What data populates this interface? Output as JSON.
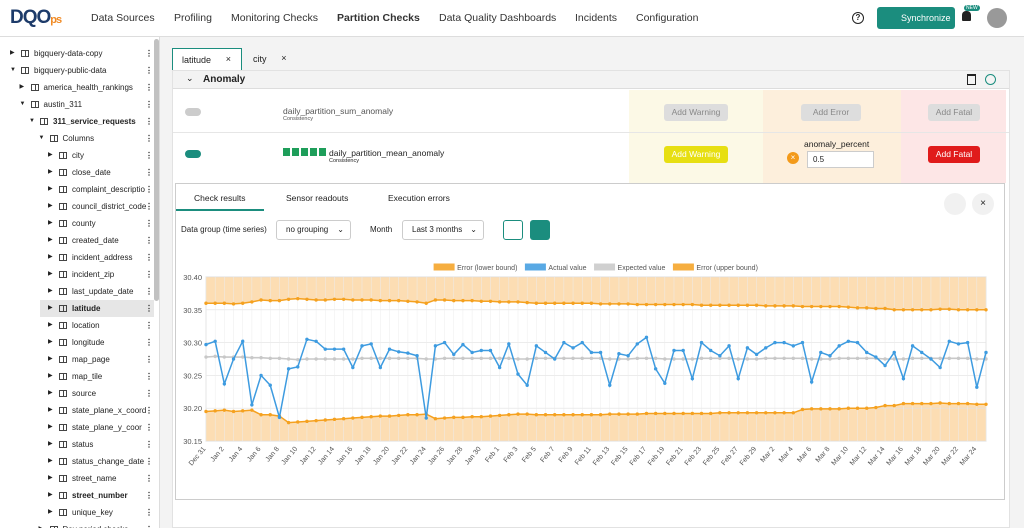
{
  "nav": {
    "logo_main": "DQO",
    "logo_suffix": "ps",
    "items": [
      {
        "label": "Data Sources"
      },
      {
        "label": "Profiling"
      },
      {
        "label": "Monitoring Checks"
      },
      {
        "label": "Partition Checks",
        "active": true
      },
      {
        "label": "Data Quality Dashboards"
      },
      {
        "label": "Incidents"
      },
      {
        "label": "Configuration"
      }
    ],
    "sync_button": "Synchronize",
    "badge": "NEW"
  },
  "sidebar": {
    "tree": [
      {
        "label": "bigquery-data-copy"
      },
      {
        "label": "bigquery-public-data",
        "children": [
          {
            "label": "america_health_rankings"
          },
          {
            "label": "austin_311",
            "children": [
              {
                "label": "311_service_requests",
                "bold": true,
                "children": [
                  {
                    "label": "Columns",
                    "children": [
                      {
                        "label": "city"
                      },
                      {
                        "label": "close_date"
                      },
                      {
                        "label": "complaint_descriptio"
                      },
                      {
                        "label": "council_district_code"
                      },
                      {
                        "label": "county"
                      },
                      {
                        "label": "created_date"
                      },
                      {
                        "label": "incident_address"
                      },
                      {
                        "label": "incident_zip"
                      },
                      {
                        "label": "last_update_date"
                      },
                      {
                        "label": "latitude",
                        "bold": true,
                        "selected": true
                      },
                      {
                        "label": "location"
                      },
                      {
                        "label": "longitude"
                      },
                      {
                        "label": "map_page"
                      },
                      {
                        "label": "map_tile"
                      },
                      {
                        "label": "source"
                      },
                      {
                        "label": "state_plane_x_coord"
                      },
                      {
                        "label": "state_plane_y_coor"
                      },
                      {
                        "label": "status"
                      },
                      {
                        "label": "status_change_date"
                      },
                      {
                        "label": "street_name"
                      },
                      {
                        "label": "street_number",
                        "bold": true
                      },
                      {
                        "label": "unique_key"
                      }
                    ]
                  },
                  {
                    "label": "Day period checks"
                  }
                ]
              }
            ]
          }
        ]
      }
    ]
  },
  "tabs": [
    {
      "label": "latitude",
      "active": true
    },
    {
      "label": "city"
    }
  ],
  "section": {
    "title": "Anomaly"
  },
  "checks": [
    {
      "name": "daily_partition_sum_anomaly",
      "category": "Consistency",
      "enabled": false,
      "warning_button": "Add Warning",
      "error_button": "Add Error",
      "fatal_button": "Add Fatal"
    },
    {
      "name": "daily_partition_mean_anomaly",
      "category": "Consistency",
      "enabled": true,
      "warning_button": "Add Warning",
      "error": {
        "parameter": "anomaly_percent",
        "value": 0.5
      },
      "fatal_button": "Add Fatal"
    }
  ],
  "results": {
    "tabs": [
      "Check results",
      "Sensor readouts",
      "Execution errors"
    ],
    "data_group_label": "Data group (time series)",
    "data_group": "no grouping",
    "period_label": "Month",
    "period": "Last 3 months"
  },
  "chart_data": {
    "type": "line",
    "categories": [
      "Dec 31",
      null,
      "Jan 2",
      null,
      "Jan 4",
      null,
      "Jan 6",
      null,
      "Jan 8",
      null,
      "Jan 10",
      null,
      "Jan 12",
      null,
      "Jan 14",
      null,
      "Jan 16",
      null,
      "Jan 18",
      null,
      "Jan 20",
      null,
      "Jan 22",
      null,
      "Jan 24",
      null,
      "Jan 26",
      null,
      "Jan 28",
      null,
      "Jan 30",
      null,
      "Feb 1",
      null,
      "Feb 3",
      null,
      "Feb 5",
      null,
      "Feb 7",
      null,
      "Feb 9",
      null,
      "Feb 11",
      null,
      "Feb 13",
      null,
      "Feb 15",
      null,
      "Feb 17",
      null,
      "Feb 19",
      null,
      "Feb 21",
      null,
      "Feb 23",
      null,
      "Feb 25",
      null,
      "Feb 27",
      null,
      "Feb 29",
      null,
      "Mar 2",
      null,
      "Mar 4",
      null,
      "Mar 6",
      null,
      "Mar 8",
      null,
      "Mar 10",
      null,
      "Mar 12",
      null,
      "Mar 14",
      null,
      "Mar 16",
      null,
      "Mar 18",
      null,
      "Mar 20",
      null,
      "Mar 22",
      null,
      "Mar 24",
      null
    ],
    "series": [
      {
        "name": "Error (lower bound)",
        "color": "#f5a11f",
        "values": [
          30.195,
          30.196,
          30.197,
          30.195,
          30.196,
          30.197,
          30.19,
          30.19,
          30.188,
          30.178,
          30.179,
          30.18,
          30.181,
          30.182,
          30.183,
          30.184,
          30.185,
          30.186,
          30.187,
          30.188,
          30.188,
          30.189,
          30.19,
          30.19,
          30.191,
          30.184,
          30.185,
          30.186,
          30.186,
          30.187,
          30.187,
          30.188,
          30.189,
          30.19,
          30.191,
          30.191,
          30.19,
          30.19,
          30.19,
          30.19,
          30.19,
          30.19,
          30.19,
          30.19,
          30.191,
          30.191,
          30.191,
          30.191,
          30.192,
          30.192,
          30.192,
          30.192,
          30.192,
          30.192,
          30.192,
          30.192,
          30.193,
          30.193,
          30.193,
          30.193,
          30.193,
          30.193,
          30.193,
          30.193,
          30.193,
          30.198,
          30.199,
          30.199,
          30.199,
          30.199,
          30.2,
          30.2,
          30.2,
          30.201,
          30.204,
          30.204,
          30.207,
          30.207,
          30.207,
          30.207,
          30.208,
          30.207,
          30.207,
          30.207,
          30.206,
          30.206
        ]
      },
      {
        "name": "Actual value",
        "color": "#3d9be0",
        "values": [
          30.297,
          30.302,
          30.237,
          30.275,
          30.302,
          30.205,
          30.25,
          30.235,
          30.186,
          30.26,
          30.263,
          30.305,
          30.302,
          30.29,
          30.29,
          30.29,
          30.262,
          30.295,
          30.298,
          30.262,
          30.29,
          30.286,
          30.284,
          30.28,
          30.185,
          30.295,
          30.3,
          30.282,
          30.297,
          30.285,
          30.288,
          30.288,
          30.262,
          30.298,
          30.252,
          30.235,
          30.295,
          30.285,
          30.275,
          30.3,
          30.292,
          30.3,
          30.285,
          30.285,
          30.235,
          30.283,
          30.28,
          30.298,
          30.308,
          30.26,
          30.238,
          30.288,
          30.288,
          30.245,
          30.3,
          30.288,
          30.28,
          30.295,
          30.245,
          30.292,
          30.282,
          30.292,
          30.3,
          30.3,
          30.295,
          30.3,
          30.24,
          30.285,
          30.28,
          30.295,
          30.302,
          30.3,
          30.285,
          30.278,
          30.265,
          30.285,
          30.245,
          30.295,
          30.285,
          30.275,
          30.262,
          30.302,
          30.298,
          30.3,
          30.232,
          30.285
        ]
      },
      {
        "name": "Expected value",
        "color": "#c8c8c8",
        "values": [
          30.278,
          30.279,
          30.278,
          30.278,
          30.278,
          30.277,
          30.277,
          30.276,
          30.276,
          30.275,
          30.274,
          30.275,
          30.275,
          30.275,
          30.275,
          30.275,
          30.275,
          30.276,
          30.276,
          30.276,
          30.276,
          30.276,
          30.276,
          30.276,
          30.275,
          30.275,
          30.276,
          30.276,
          30.276,
          30.276,
          30.276,
          30.276,
          30.276,
          30.276,
          30.275,
          30.275,
          30.276,
          30.276,
          30.276,
          30.276,
          30.276,
          30.276,
          30.276,
          30.276,
          30.275,
          30.275,
          30.275,
          30.276,
          30.276,
          30.276,
          30.275,
          30.275,
          30.275,
          30.275,
          30.276,
          30.276,
          30.276,
          30.276,
          30.275,
          30.275,
          30.275,
          30.276,
          30.276,
          30.276,
          30.276,
          30.276,
          30.275,
          30.275,
          30.275,
          30.276,
          30.276,
          30.276,
          30.276,
          30.276,
          30.275,
          30.275,
          30.275,
          30.276,
          30.276,
          30.276,
          30.276,
          30.276,
          30.276,
          30.276,
          30.275,
          30.275
        ]
      },
      {
        "name": "Error (upper bound)",
        "color": "#f5a11f",
        "values": [
          30.36,
          30.36,
          30.36,
          30.359,
          30.36,
          30.362,
          30.365,
          30.364,
          30.364,
          30.366,
          30.367,
          30.366,
          30.365,
          30.365,
          30.366,
          30.366,
          30.365,
          30.365,
          30.365,
          30.364,
          30.364,
          30.364,
          30.363,
          30.362,
          30.36,
          30.365,
          30.365,
          30.364,
          30.364,
          30.364,
          30.363,
          30.363,
          30.362,
          30.362,
          30.362,
          30.361,
          30.36,
          30.36,
          30.36,
          30.36,
          30.36,
          30.36,
          30.36,
          30.359,
          30.359,
          30.359,
          30.359,
          30.358,
          30.358,
          30.358,
          30.358,
          30.358,
          30.358,
          30.358,
          30.357,
          30.357,
          30.357,
          30.357,
          30.357,
          30.357,
          30.357,
          30.356,
          30.356,
          30.356,
          30.356,
          30.355,
          30.355,
          30.355,
          30.355,
          30.355,
          30.354,
          30.353,
          30.353,
          30.352,
          30.352,
          30.35,
          30.35,
          30.35,
          30.35,
          30.35,
          30.351,
          30.351,
          30.35,
          30.35,
          30.35,
          30.35
        ]
      }
    ],
    "ylim": [
      30.15,
      30.4
    ],
    "yticks": [
      {
        "value": 30.15,
        "label": "30.15"
      },
      {
        "value": 30.2,
        "label": "30.20"
      },
      {
        "value": 30.25,
        "label": "30.25"
      },
      {
        "value": 30.3,
        "label": "30.30"
      },
      {
        "value": 30.35,
        "label": "30.35"
      },
      {
        "value": 30.4,
        "label": "30.40"
      }
    ],
    "grid": true
  }
}
